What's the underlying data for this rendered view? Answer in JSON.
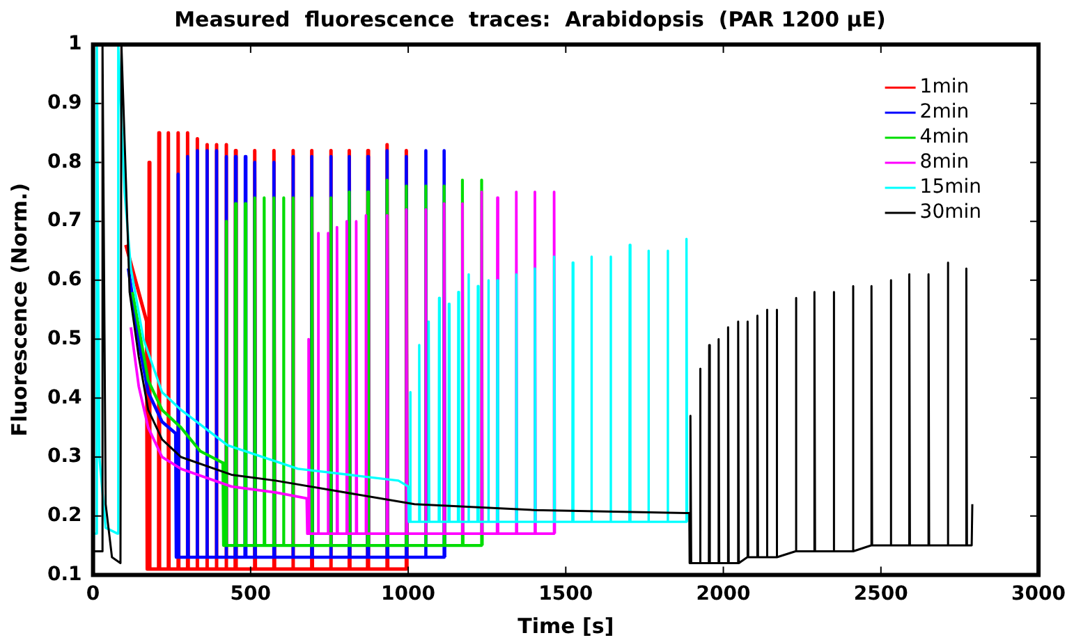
{
  "chart_data": {
    "type": "line",
    "title": "Measured  fluorescence  traces:  Arabidopsis  (PAR 1200 μE)",
    "xlabel": "Time [s]",
    "ylabel": "Fluorescence (Norm.)",
    "xlim": [
      0,
      3000
    ],
    "xticks": [
      0,
      500,
      1000,
      1500,
      2000,
      2500,
      3000
    ],
    "ylim": [
      0.1,
      1
    ],
    "yticks": [
      0.1,
      0.2,
      0.3,
      0.4,
      0.5,
      0.6,
      0.7,
      0.8,
      0.9,
      1
    ],
    "legend": "top right",
    "marker": "none",
    "line_style": "solid",
    "series": [
      {
        "name": "1min",
        "color": "#ff0000",
        "x": [
          104,
          170,
          172,
          177,
          178,
          180,
          208,
          209,
          211,
          238,
          239,
          241,
          269,
          270,
          272,
          299,
          300,
          302,
          329,
          330,
          332,
          360,
          361,
          363,
          390,
          391,
          393,
          421,
          422,
          424,
          451,
          452,
          454,
          512,
          513,
          515,
          573,
          574,
          576,
          633,
          634,
          636,
          693,
          694,
          696,
          753,
          754,
          756,
          812,
          813,
          815,
          871,
          872,
          874,
          932,
          933,
          935,
          993,
          994,
          996
        ],
        "values": [
          0.66,
          0.53,
          0.11,
          0.11,
          0.8,
          0.11,
          0.11,
          0.85,
          0.11,
          0.11,
          0.85,
          0.11,
          0.11,
          0.85,
          0.11,
          0.11,
          0.85,
          0.11,
          0.11,
          0.84,
          0.11,
          0.11,
          0.83,
          0.11,
          0.11,
          0.83,
          0.11,
          0.11,
          0.83,
          0.11,
          0.11,
          0.82,
          0.11,
          0.11,
          0.82,
          0.11,
          0.11,
          0.82,
          0.11,
          0.11,
          0.82,
          0.11,
          0.11,
          0.82,
          0.11,
          0.11,
          0.82,
          0.11,
          0.11,
          0.82,
          0.11,
          0.11,
          0.82,
          0.11,
          0.11,
          0.83,
          0.11,
          0.11,
          0.82,
          0.11
        ]
      },
      {
        "name": "2min",
        "color": "#0000ff",
        "x": [
          112,
          150,
          175,
          219,
          262,
          264,
          269,
          270,
          272,
          299,
          300,
          302,
          329,
          330,
          332,
          360,
          361,
          363,
          390,
          391,
          393,
          421,
          422,
          424,
          451,
          452,
          454,
          482,
          483,
          485,
          512,
          513,
          515,
          573,
          574,
          576,
          633,
          634,
          636,
          693,
          694,
          696,
          753,
          754,
          756,
          812,
          813,
          815,
          871,
          872,
          874,
          932,
          933,
          935,
          993,
          994,
          996,
          1054,
          1055,
          1057,
          1113,
          1114,
          1116
        ],
        "values": [
          0.62,
          0.48,
          0.41,
          0.36,
          0.34,
          0.13,
          0.13,
          0.78,
          0.13,
          0.13,
          0.81,
          0.13,
          0.13,
          0.82,
          0.13,
          0.13,
          0.82,
          0.13,
          0.13,
          0.82,
          0.13,
          0.13,
          0.81,
          0.13,
          0.13,
          0.81,
          0.13,
          0.13,
          0.81,
          0.13,
          0.13,
          0.8,
          0.13,
          0.13,
          0.8,
          0.13,
          0.13,
          0.81,
          0.13,
          0.13,
          0.81,
          0.13,
          0.13,
          0.81,
          0.13,
          0.13,
          0.81,
          0.13,
          0.13,
          0.81,
          0.13,
          0.13,
          0.82,
          0.13,
          0.13,
          0.81,
          0.13,
          0.13,
          0.82,
          0.13,
          0.13,
          0.82,
          0.13
        ]
      },
      {
        "name": "4min",
        "color": "#00dd00",
        "x": [
          125,
          175,
          219,
          279,
          340,
          412,
          414,
          421,
          422,
          424,
          451,
          452,
          454,
          482,
          483,
          485,
          512,
          513,
          515,
          542,
          543,
          545,
          573,
          574,
          576,
          603,
          604,
          606,
          633,
          634,
          636,
          693,
          694,
          696,
          753,
          754,
          756,
          812,
          813,
          815,
          871,
          872,
          874,
          932,
          933,
          935,
          993,
          994,
          996,
          1054,
          1055,
          1057,
          1113,
          1114,
          1116,
          1171,
          1172,
          1174,
          1232,
          1233,
          1235
        ],
        "values": [
          0.58,
          0.43,
          0.38,
          0.35,
          0.31,
          0.29,
          0.15,
          0.15,
          0.7,
          0.15,
          0.15,
          0.73,
          0.15,
          0.15,
          0.73,
          0.15,
          0.15,
          0.74,
          0.15,
          0.15,
          0.74,
          0.15,
          0.15,
          0.74,
          0.15,
          0.15,
          0.74,
          0.15,
          0.15,
          0.74,
          0.15,
          0.15,
          0.74,
          0.15,
          0.15,
          0.74,
          0.15,
          0.15,
          0.75,
          0.15,
          0.15,
          0.75,
          0.15,
          0.15,
          0.77,
          0.15,
          0.15,
          0.76,
          0.15,
          0.15,
          0.76,
          0.15,
          0.15,
          0.76,
          0.15,
          0.15,
          0.77,
          0.15,
          0.15,
          0.77,
          0.15
        ]
      },
      {
        "name": "8min",
        "color": "#ff00ff",
        "x": [
          120,
          145,
          175,
          219,
          279,
          439,
          579,
          678,
          680,
          683,
          684,
          686,
          713,
          714,
          716,
          744,
          745,
          747,
          773,
          774,
          776,
          804,
          805,
          807,
          834,
          835,
          837,
          865,
          866,
          868,
          932,
          933,
          935,
          993,
          994,
          996,
          1054,
          1055,
          1057,
          1113,
          1114,
          1116,
          1171,
          1172,
          1174,
          1232,
          1233,
          1235,
          1282,
          1283,
          1285,
          1342,
          1343,
          1345,
          1401,
          1402,
          1404,
          1462,
          1463,
          1465
        ],
        "values": [
          0.52,
          0.42,
          0.35,
          0.3,
          0.28,
          0.25,
          0.24,
          0.23,
          0.17,
          0.17,
          0.5,
          0.17,
          0.17,
          0.68,
          0.17,
          0.17,
          0.68,
          0.17,
          0.17,
          0.69,
          0.17,
          0.17,
          0.7,
          0.17,
          0.17,
          0.7,
          0.17,
          0.17,
          0.71,
          0.17,
          0.17,
          0.71,
          0.17,
          0.17,
          0.72,
          0.17,
          0.17,
          0.72,
          0.17,
          0.17,
          0.73,
          0.17,
          0.17,
          0.73,
          0.17,
          0.17,
          0.75,
          0.17,
          0.17,
          0.74,
          0.17,
          0.17,
          0.75,
          0.17,
          0.17,
          0.75,
          0.17,
          0.17,
          0.75,
          0.17
        ]
      },
      {
        "name": "15min",
        "color": "#00ffff",
        "x": [
          0,
          10,
          12,
          20,
          40,
          78,
          80,
          100,
          120,
          160,
          219,
          279,
          427,
          650,
          969,
          1000,
          1002,
          1005,
          1006,
          1008,
          1034,
          1035,
          1037,
          1064,
          1065,
          1067,
          1097,
          1098,
          1100,
          1128,
          1129,
          1131,
          1158,
          1159,
          1161,
          1190,
          1191,
          1193,
          1220,
          1221,
          1223,
          1253,
          1254,
          1256,
          1282,
          1283,
          1285,
          1342,
          1343,
          1345,
          1401,
          1402,
          1404,
          1462,
          1463,
          1465,
          1521,
          1522,
          1524,
          1580,
          1581,
          1583,
          1641,
          1642,
          1644,
          1702,
          1703,
          1705,
          1761,
          1762,
          1764,
          1822,
          1823,
          1825,
          1882,
          1883,
          1885
        ],
        "values": [
          0.17,
          0.17,
          1,
          0.3,
          0.18,
          0.17,
          1,
          0.75,
          0.62,
          0.5,
          0.41,
          0.38,
          0.32,
          0.28,
          0.26,
          0.25,
          0.19,
          0.19,
          0.41,
          0.19,
          0.19,
          0.49,
          0.19,
          0.19,
          0.53,
          0.19,
          0.19,
          0.57,
          0.19,
          0.19,
          0.56,
          0.19,
          0.19,
          0.58,
          0.19,
          0.19,
          0.61,
          0.19,
          0.19,
          0.59,
          0.19,
          0.19,
          0.6,
          0.19,
          0.19,
          0.6,
          0.19,
          0.19,
          0.61,
          0.19,
          0.19,
          0.62,
          0.19,
          0.19,
          0.64,
          0.19,
          0.19,
          0.63,
          0.19,
          0.19,
          0.64,
          0.19,
          0.19,
          0.64,
          0.19,
          0.19,
          0.66,
          0.19,
          0.19,
          0.65,
          0.19,
          0.19,
          0.65,
          0.19,
          0.19,
          0.67,
          0.19
        ]
      },
      {
        "name": "30min",
        "color": "#000000",
        "x": [
          0,
          28,
          30,
          40,
          60,
          87,
          90,
          116,
          145,
          175,
          219,
          279,
          439,
          579,
          798,
          1020,
          1400,
          1880,
          1892,
          1893,
          1895,
          1896,
          1898,
          1925,
          1926,
          1928,
          1954,
          1955,
          1957,
          1984,
          1985,
          1987,
          2014,
          2015,
          2017,
          2046,
          2047,
          2049,
          2076,
          2077,
          2079,
          2107,
          2108,
          2110,
          2137,
          2138,
          2140,
          2168,
          2169,
          2171,
          2229,
          2230,
          2232,
          2288,
          2289,
          2291,
          2349,
          2350,
          2352,
          2410,
          2411,
          2413,
          2469,
          2470,
          2472,
          2530,
          2531,
          2533,
          2589,
          2590,
          2592,
          2650,
          2651,
          2653,
          2711,
          2712,
          2714,
          2770,
          2771,
          2773,
          2788,
          2790
        ],
        "values": [
          0.14,
          0.14,
          1,
          0.22,
          0.13,
          0.12,
          1,
          0.58,
          0.47,
          0.38,
          0.33,
          0.3,
          0.27,
          0.26,
          0.24,
          0.22,
          0.21,
          0.205,
          0.205,
          0.12,
          0.12,
          0.37,
          0.12,
          0.12,
          0.45,
          0.12,
          0.12,
          0.49,
          0.12,
          0.12,
          0.5,
          0.12,
          0.12,
          0.52,
          0.12,
          0.12,
          0.53,
          0.12,
          0.13,
          0.53,
          0.13,
          0.13,
          0.54,
          0.13,
          0.13,
          0.55,
          0.13,
          0.13,
          0.55,
          0.13,
          0.14,
          0.57,
          0.14,
          0.14,
          0.58,
          0.14,
          0.14,
          0.58,
          0.14,
          0.14,
          0.59,
          0.14,
          0.15,
          0.59,
          0.15,
          0.15,
          0.6,
          0.15,
          0.15,
          0.61,
          0.15,
          0.15,
          0.61,
          0.15,
          0.15,
          0.63,
          0.15,
          0.15,
          0.62,
          0.15,
          0.15,
          0.22
        ]
      }
    ]
  }
}
